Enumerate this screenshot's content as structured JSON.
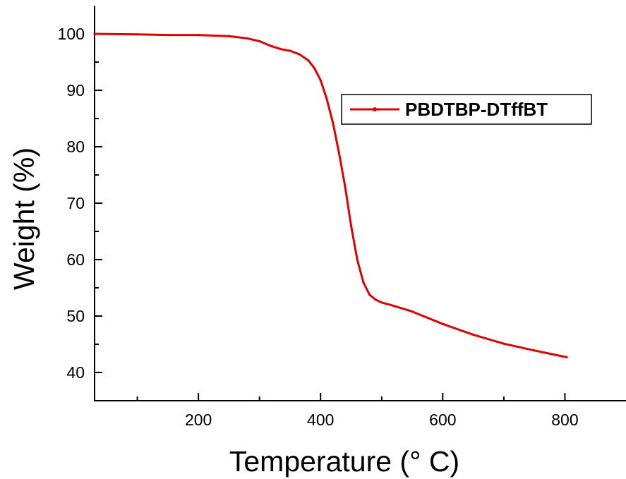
{
  "chart_data": {
    "type": "line",
    "title": "",
    "xlabel": "Temperature (° C)",
    "ylabel": "Weight (%)",
    "xlim": [
      30,
      900
    ],
    "ylim": [
      35,
      105
    ],
    "x_ticks": [
      200,
      400,
      600,
      800
    ],
    "x_minor_ticks": [
      100,
      300,
      500,
      700
    ],
    "y_ticks": [
      40,
      50,
      60,
      70,
      80,
      90,
      100
    ],
    "y_minor_ticks": [
      45,
      55,
      65,
      75,
      85,
      95
    ],
    "grid": false,
    "legend_position": "top-right",
    "series": [
      {
        "name": "PBDTBP-DTffBT",
        "color": "#e00000",
        "x": [
          30,
          100,
          150,
          200,
          250,
          280,
          300,
          320,
          335,
          350,
          365,
          380,
          390,
          400,
          410,
          420,
          430,
          440,
          450,
          460,
          470,
          480,
          490,
          500,
          520,
          550,
          600,
          650,
          700,
          750,
          803
        ],
        "y": [
          100.0,
          99.9,
          99.8,
          99.8,
          99.6,
          99.2,
          98.7,
          97.8,
          97.3,
          97.0,
          96.4,
          95.3,
          93.9,
          91.8,
          88.5,
          84.3,
          79.0,
          73.0,
          66.0,
          60.0,
          56.0,
          53.8,
          52.9,
          52.4,
          51.8,
          50.8,
          48.6,
          46.7,
          45.1,
          43.9,
          42.7
        ]
      }
    ]
  }
}
